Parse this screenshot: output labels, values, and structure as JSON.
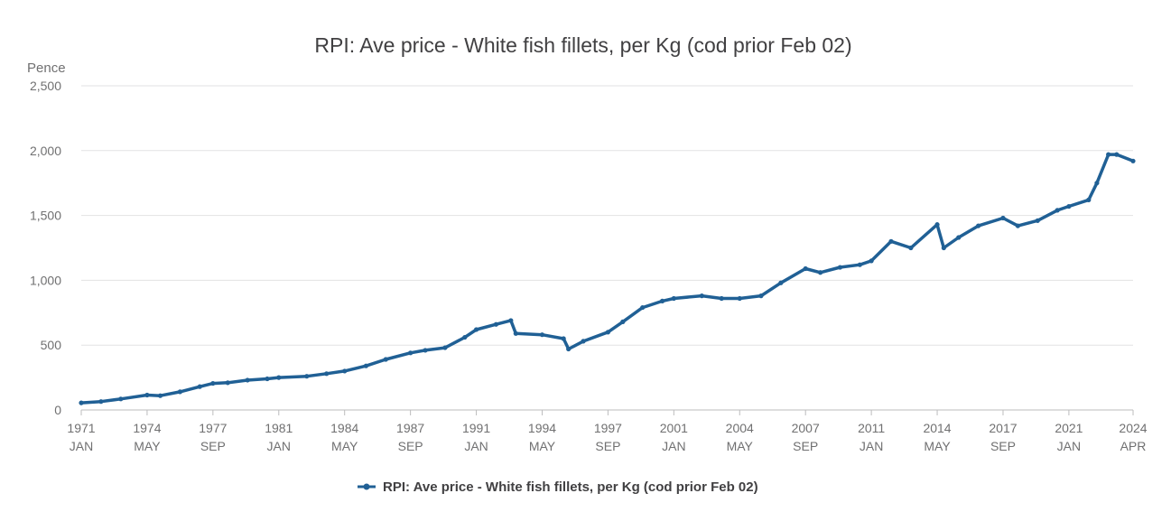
{
  "chart_data": {
    "type": "line",
    "title": "RPI: Ave price - White fish fillets, per Kg (cod prior Feb 02)",
    "ylabel": "Pence",
    "xlabel": "",
    "ylim": [
      0,
      2500
    ],
    "yticks": [
      0,
      500,
      1000,
      1500,
      2000,
      2500
    ],
    "ytick_labels": [
      "0",
      "500",
      "1,000",
      "1,500",
      "2,000",
      "2,500"
    ],
    "xlim": [
      "1971-01",
      "2024-04"
    ],
    "xticks": [
      {
        "date": "1971-01",
        "year": "1971",
        "month": "JAN"
      },
      {
        "date": "1974-05",
        "year": "1974",
        "month": "MAY"
      },
      {
        "date": "1977-09",
        "year": "1977",
        "month": "SEP"
      },
      {
        "date": "1981-01",
        "year": "1981",
        "month": "JAN"
      },
      {
        "date": "1984-05",
        "year": "1984",
        "month": "MAY"
      },
      {
        "date": "1987-09",
        "year": "1987",
        "month": "SEP"
      },
      {
        "date": "1991-01",
        "year": "1991",
        "month": "JAN"
      },
      {
        "date": "1994-05",
        "year": "1994",
        "month": "MAY"
      },
      {
        "date": "1997-09",
        "year": "1997",
        "month": "SEP"
      },
      {
        "date": "2001-01",
        "year": "2001",
        "month": "JAN"
      },
      {
        "date": "2004-05",
        "year": "2004",
        "month": "MAY"
      },
      {
        "date": "2007-09",
        "year": "2007",
        "month": "SEP"
      },
      {
        "date": "2011-01",
        "year": "2011",
        "month": "JAN"
      },
      {
        "date": "2014-05",
        "year": "2014",
        "month": "MAY"
      },
      {
        "date": "2017-09",
        "year": "2017",
        "month": "SEP"
      },
      {
        "date": "2021-01",
        "year": "2021",
        "month": "JAN"
      },
      {
        "date": "2024-04",
        "year": "2024",
        "month": "APR"
      }
    ],
    "grid": true,
    "legend_position": "bottom-center",
    "color": "#206095",
    "series": [
      {
        "name": "RPI: Ave price - White fish fillets, per Kg (cod prior Feb 02)",
        "points": [
          {
            "x": "1971-01",
            "y": 55
          },
          {
            "x": "1972-01",
            "y": 65
          },
          {
            "x": "1973-01",
            "y": 85
          },
          {
            "x": "1974-05",
            "y": 115
          },
          {
            "x": "1975-01",
            "y": 110
          },
          {
            "x": "1976-01",
            "y": 140
          },
          {
            "x": "1977-01",
            "y": 180
          },
          {
            "x": "1977-09",
            "y": 205
          },
          {
            "x": "1978-06",
            "y": 210
          },
          {
            "x": "1979-06",
            "y": 230
          },
          {
            "x": "1980-06",
            "y": 240
          },
          {
            "x": "1981-01",
            "y": 250
          },
          {
            "x": "1982-06",
            "y": 260
          },
          {
            "x": "1983-06",
            "y": 280
          },
          {
            "x": "1984-05",
            "y": 300
          },
          {
            "x": "1985-06",
            "y": 340
          },
          {
            "x": "1986-06",
            "y": 390
          },
          {
            "x": "1987-09",
            "y": 440
          },
          {
            "x": "1988-06",
            "y": 460
          },
          {
            "x": "1989-06",
            "y": 480
          },
          {
            "x": "1990-06",
            "y": 560
          },
          {
            "x": "1991-01",
            "y": 620
          },
          {
            "x": "1992-01",
            "y": 660
          },
          {
            "x": "1992-10",
            "y": 690
          },
          {
            "x": "1993-01",
            "y": 590
          },
          {
            "x": "1994-05",
            "y": 580
          },
          {
            "x": "1995-06",
            "y": 550
          },
          {
            "x": "1995-09",
            "y": 470
          },
          {
            "x": "1996-06",
            "y": 530
          },
          {
            "x": "1997-09",
            "y": 600
          },
          {
            "x": "1998-06",
            "y": 680
          },
          {
            "x": "1999-06",
            "y": 790
          },
          {
            "x": "2000-06",
            "y": 840
          },
          {
            "x": "2001-01",
            "y": 860
          },
          {
            "x": "2002-06",
            "y": 880
          },
          {
            "x": "2003-06",
            "y": 860
          },
          {
            "x": "2004-05",
            "y": 860
          },
          {
            "x": "2005-06",
            "y": 880
          },
          {
            "x": "2006-06",
            "y": 980
          },
          {
            "x": "2007-09",
            "y": 1090
          },
          {
            "x": "2008-06",
            "y": 1060
          },
          {
            "x": "2009-06",
            "y": 1100
          },
          {
            "x": "2010-06",
            "y": 1120
          },
          {
            "x": "2011-01",
            "y": 1150
          },
          {
            "x": "2012-01",
            "y": 1300
          },
          {
            "x": "2013-01",
            "y": 1250
          },
          {
            "x": "2014-05",
            "y": 1430
          },
          {
            "x": "2014-09",
            "y": 1250
          },
          {
            "x": "2015-06",
            "y": 1330
          },
          {
            "x": "2016-06",
            "y": 1420
          },
          {
            "x": "2017-09",
            "y": 1480
          },
          {
            "x": "2018-06",
            "y": 1420
          },
          {
            "x": "2019-06",
            "y": 1460
          },
          {
            "x": "2020-06",
            "y": 1540
          },
          {
            "x": "2021-01",
            "y": 1570
          },
          {
            "x": "2022-01",
            "y": 1620
          },
          {
            "x": "2022-06",
            "y": 1750
          },
          {
            "x": "2023-01",
            "y": 1970
          },
          {
            "x": "2023-06",
            "y": 1970
          },
          {
            "x": "2024-04",
            "y": 1920
          }
        ]
      }
    ]
  }
}
